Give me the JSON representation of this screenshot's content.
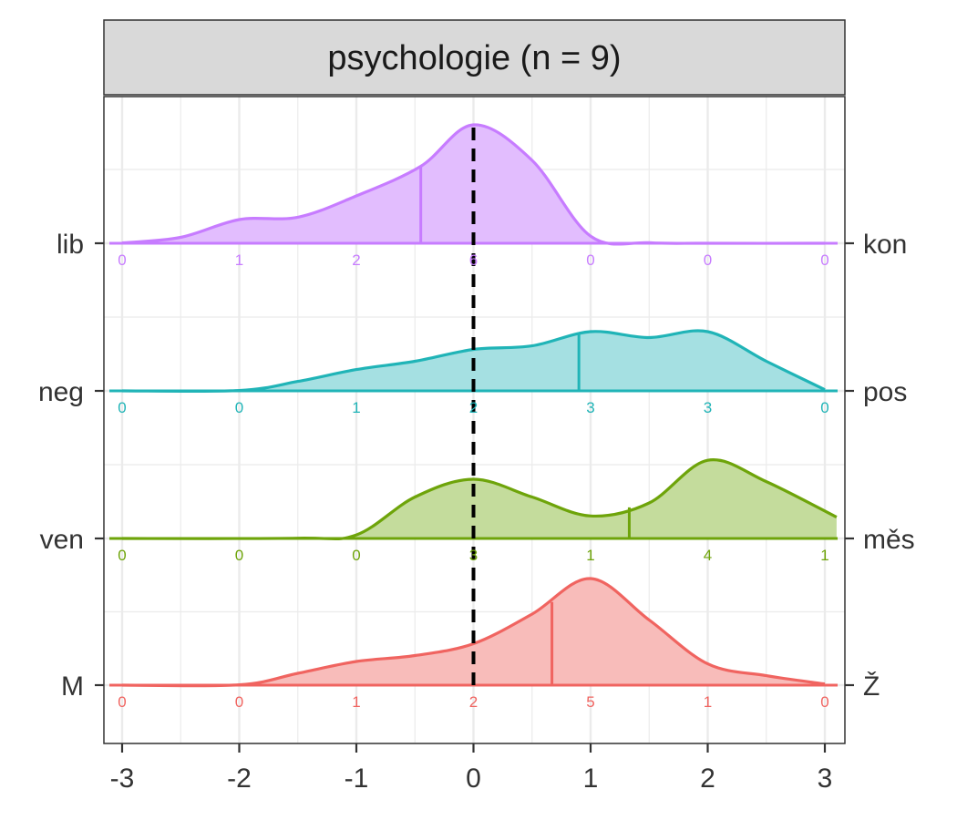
{
  "chart_data": {
    "type": "ridgeline",
    "facet_title": "psychologie (n = 9)",
    "x_ticks": [
      "-3",
      "-2",
      "-1",
      "0",
      "1",
      "2",
      "3"
    ],
    "xlim": [
      -3,
      3
    ],
    "reference_line_x": 0,
    "rows": [
      {
        "left_label": "lib",
        "right_label": "kon",
        "color": "#c77cff",
        "fill": "#e2bdfe",
        "mean": -0.45,
        "counts": [
          "0",
          "1",
          "2",
          "6",
          "0",
          "0",
          "0"
        ],
        "density": [
          [
            -3,
            0.003
          ],
          [
            -2.5,
            0.05
          ],
          [
            -2,
            0.2
          ],
          [
            -1.5,
            0.22
          ],
          [
            -1,
            0.4
          ],
          [
            -0.45,
            0.65
          ],
          [
            0,
            1.0
          ],
          [
            0.5,
            0.7
          ],
          [
            1,
            0.06
          ],
          [
            1.5,
            0.005
          ],
          [
            2,
            0
          ],
          [
            3,
            0
          ]
        ]
      },
      {
        "left_label": "neg",
        "right_label": "pos",
        "color": "#20b4b7",
        "fill": "#a5e0e2",
        "mean": 0.9,
        "counts": [
          "0",
          "0",
          "1",
          "2",
          "3",
          "3",
          "0"
        ],
        "density": [
          [
            -3,
            0
          ],
          [
            -2,
            0.003
          ],
          [
            -1.5,
            0.08
          ],
          [
            -1,
            0.18
          ],
          [
            -0.5,
            0.25
          ],
          [
            0,
            0.35
          ],
          [
            0.5,
            0.38
          ],
          [
            1,
            0.5
          ],
          [
            1.5,
            0.45
          ],
          [
            2,
            0.5
          ],
          [
            2.5,
            0.25
          ],
          [
            3,
            0.01
          ]
        ]
      },
      {
        "left_label": "ven",
        "right_label": "měs",
        "color": "#6ea40a",
        "fill": "#c4dc9c",
        "mean": 1.33,
        "counts": [
          "0",
          "0",
          "0",
          "3",
          "1",
          "4",
          "1"
        ],
        "density": [
          [
            -3,
            0
          ],
          [
            -1.5,
            0.002
          ],
          [
            -1,
            0.03
          ],
          [
            -0.5,
            0.35
          ],
          [
            0,
            0.5
          ],
          [
            0.5,
            0.35
          ],
          [
            1,
            0.19
          ],
          [
            1.5,
            0.3
          ],
          [
            2,
            0.66
          ],
          [
            2.5,
            0.48
          ],
          [
            3.1,
            0.18
          ]
        ]
      },
      {
        "left_label": "M",
        "right_label": "Ž",
        "color": "#f06460",
        "fill": "#f8bcba",
        "mean": 0.67,
        "counts": [
          "0",
          "0",
          "1",
          "2",
          "5",
          "1",
          "0"
        ],
        "density": [
          [
            -3,
            0
          ],
          [
            -2,
            0.003
          ],
          [
            -1.5,
            0.1
          ],
          [
            -1,
            0.2
          ],
          [
            -0.5,
            0.25
          ],
          [
            0,
            0.35
          ],
          [
            0.5,
            0.6
          ],
          [
            1,
            0.9
          ],
          [
            1.5,
            0.55
          ],
          [
            2,
            0.18
          ],
          [
            2.5,
            0.08
          ],
          [
            3,
            0.01
          ]
        ]
      }
    ]
  }
}
